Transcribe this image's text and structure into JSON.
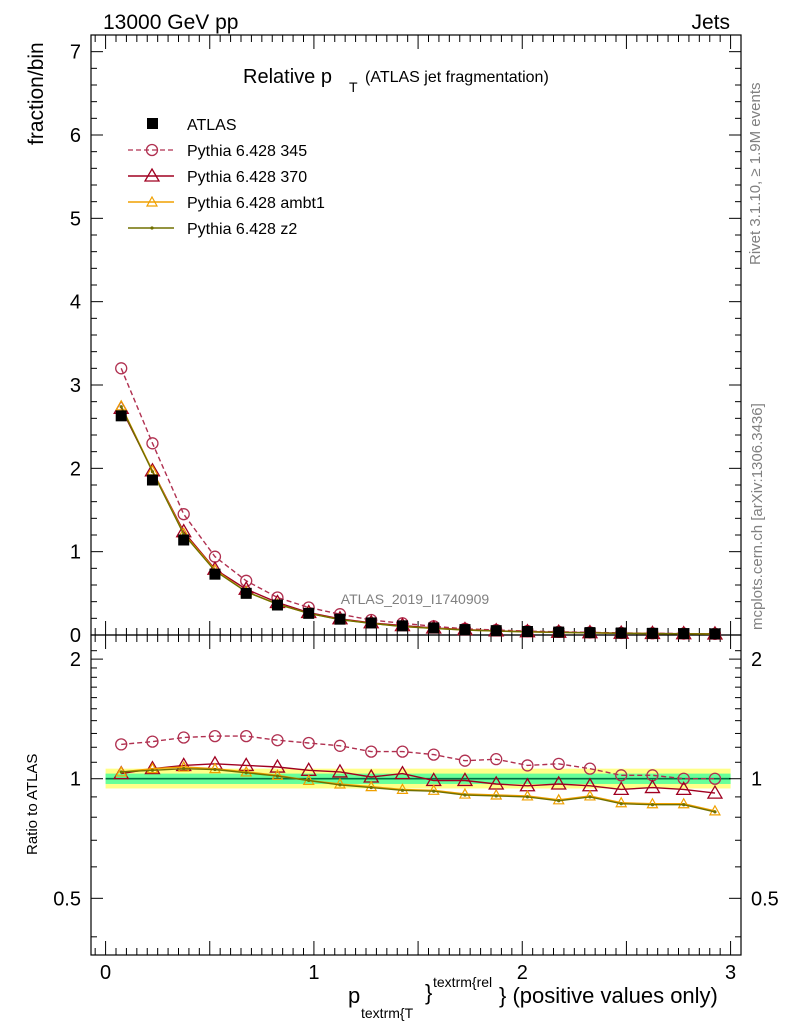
{
  "header": {
    "left": "13000 GeV pp",
    "right": "Jets"
  },
  "side": {
    "rivet": "Rivet 3.1.10, ≥ 1.9M events",
    "mcplots": "mcplots.cern.ch [arXiv:1306.3436]"
  },
  "watermark": "ATLAS_2019_I1740909",
  "title": {
    "main": "Relative p",
    "sub": "T",
    "extra": "(ATLAS jet fragmentation)"
  },
  "xlabel": {
    "p": "p",
    "sub": "textrm{T",
    "sup": "textrm{rel",
    "close": "}",
    "rest": "} (positive values only)"
  },
  "colors": {
    "data": "#000000",
    "p345": "#b03050",
    "p370": "#a00020",
    "ambt1": "#f0a000",
    "z2": "#707000",
    "band_inner": "#66ff99",
    "band_outer": "#ffff88",
    "ratio_line": "#007040"
  },
  "chart_data": [
    {
      "type": "line",
      "ylabel": "fraction/bin",
      "xlim": [
        -0.07,
        3.05
      ],
      "ylim": [
        0,
        7.2
      ],
      "yticks": [
        "0",
        "1",
        "2",
        "3",
        "4",
        "5",
        "6",
        "7"
      ],
      "x": [
        0.075,
        0.225,
        0.375,
        0.525,
        0.675,
        0.825,
        0.975,
        1.125,
        1.275,
        1.425,
        1.575,
        1.725,
        1.875,
        2.025,
        2.175,
        2.325,
        2.475,
        2.625,
        2.775,
        2.925
      ],
      "legend": [
        "ATLAS",
        "Pythia 6.428 345",
        "Pythia 6.428 370",
        "Pythia 6.428 ambt1",
        "Pythia 6.428 z2"
      ],
      "series": [
        {
          "name": "ATLAS",
          "values": [
            2.63,
            1.86,
            1.14,
            0.73,
            0.5,
            0.36,
            0.26,
            0.19,
            0.145,
            0.11,
            0.085,
            0.065,
            0.052,
            0.042,
            0.035,
            0.029,
            0.024,
            0.02,
            0.017,
            0.014
          ]
        },
        {
          "name": "Pythia 6.428 345",
          "values": [
            3.2,
            2.3,
            1.45,
            0.94,
            0.65,
            0.45,
            0.33,
            0.25,
            0.18,
            0.14,
            0.105,
            0.075,
            0.06,
            0.047,
            0.039,
            0.031,
            0.025,
            0.021,
            0.017,
            0.014
          ]
        },
        {
          "name": "Pythia 6.428 370",
          "values": [
            2.72,
            1.97,
            1.24,
            0.79,
            0.55,
            0.39,
            0.27,
            0.195,
            0.147,
            0.113,
            0.084,
            0.065,
            0.05,
            0.04,
            0.034,
            0.028,
            0.022,
            0.019,
            0.016,
            0.013
          ]
        },
        {
          "name": "Pythia 6.428 ambt1",
          "values": [
            2.75,
            1.97,
            1.22,
            0.78,
            0.52,
            0.37,
            0.26,
            0.185,
            0.14,
            0.103,
            0.08,
            0.06,
            0.048,
            0.038,
            0.031,
            0.026,
            0.021,
            0.017,
            0.015,
            0.012
          ]
        },
        {
          "name": "Pythia 6.428 z2",
          "values": [
            2.74,
            1.96,
            1.21,
            0.77,
            0.52,
            0.37,
            0.26,
            0.184,
            0.139,
            0.102,
            0.079,
            0.059,
            0.047,
            0.038,
            0.031,
            0.026,
            0.021,
            0.017,
            0.015,
            0.012
          ]
        }
      ]
    },
    {
      "type": "line",
      "ylabel": "Ratio to ATLAS",
      "xlim": [
        -0.07,
        3.05
      ],
      "ylim": [
        0.36,
        2.3
      ],
      "log_y": true,
      "yticks": [
        "0.5",
        "1",
        "2"
      ],
      "xticks": [
        "0",
        "1",
        "2",
        "3"
      ],
      "x": [
        0.075,
        0.225,
        0.375,
        0.525,
        0.675,
        0.825,
        0.975,
        1.125,
        1.275,
        1.425,
        1.575,
        1.725,
        1.875,
        2.025,
        2.175,
        2.325,
        2.475,
        2.625,
        2.775,
        2.925
      ],
      "band": {
        "inner": [
          0.97,
          1.03
        ],
        "outer": [
          0.945,
          1.06
        ]
      },
      "series": [
        {
          "name": "Pythia 6.428 345",
          "values": [
            1.22,
            1.24,
            1.27,
            1.28,
            1.28,
            1.25,
            1.23,
            1.21,
            1.17,
            1.17,
            1.15,
            1.11,
            1.12,
            1.08,
            1.09,
            1.06,
            1.02,
            1.02,
            1.0,
            1.0
          ]
        },
        {
          "name": "Pythia 6.428 370",
          "values": [
            1.03,
            1.06,
            1.08,
            1.09,
            1.08,
            1.07,
            1.05,
            1.04,
            1.01,
            1.03,
            0.99,
            0.99,
            0.97,
            0.96,
            0.97,
            0.96,
            0.94,
            0.95,
            0.94,
            0.92
          ]
        },
        {
          "name": "Pythia 6.428 ambt1",
          "values": [
            1.04,
            1.06,
            1.07,
            1.06,
            1.04,
            1.02,
            0.99,
            0.97,
            0.955,
            0.94,
            0.935,
            0.915,
            0.91,
            0.905,
            0.885,
            0.905,
            0.87,
            0.865,
            0.865,
            0.83
          ]
        },
        {
          "name": "Pythia 6.428 z2",
          "values": [
            1.04,
            1.05,
            1.06,
            1.055,
            1.035,
            1.015,
            0.99,
            0.965,
            0.95,
            0.935,
            0.93,
            0.91,
            0.905,
            0.9,
            0.88,
            0.9,
            0.865,
            0.86,
            0.86,
            0.825
          ]
        }
      ]
    }
  ]
}
